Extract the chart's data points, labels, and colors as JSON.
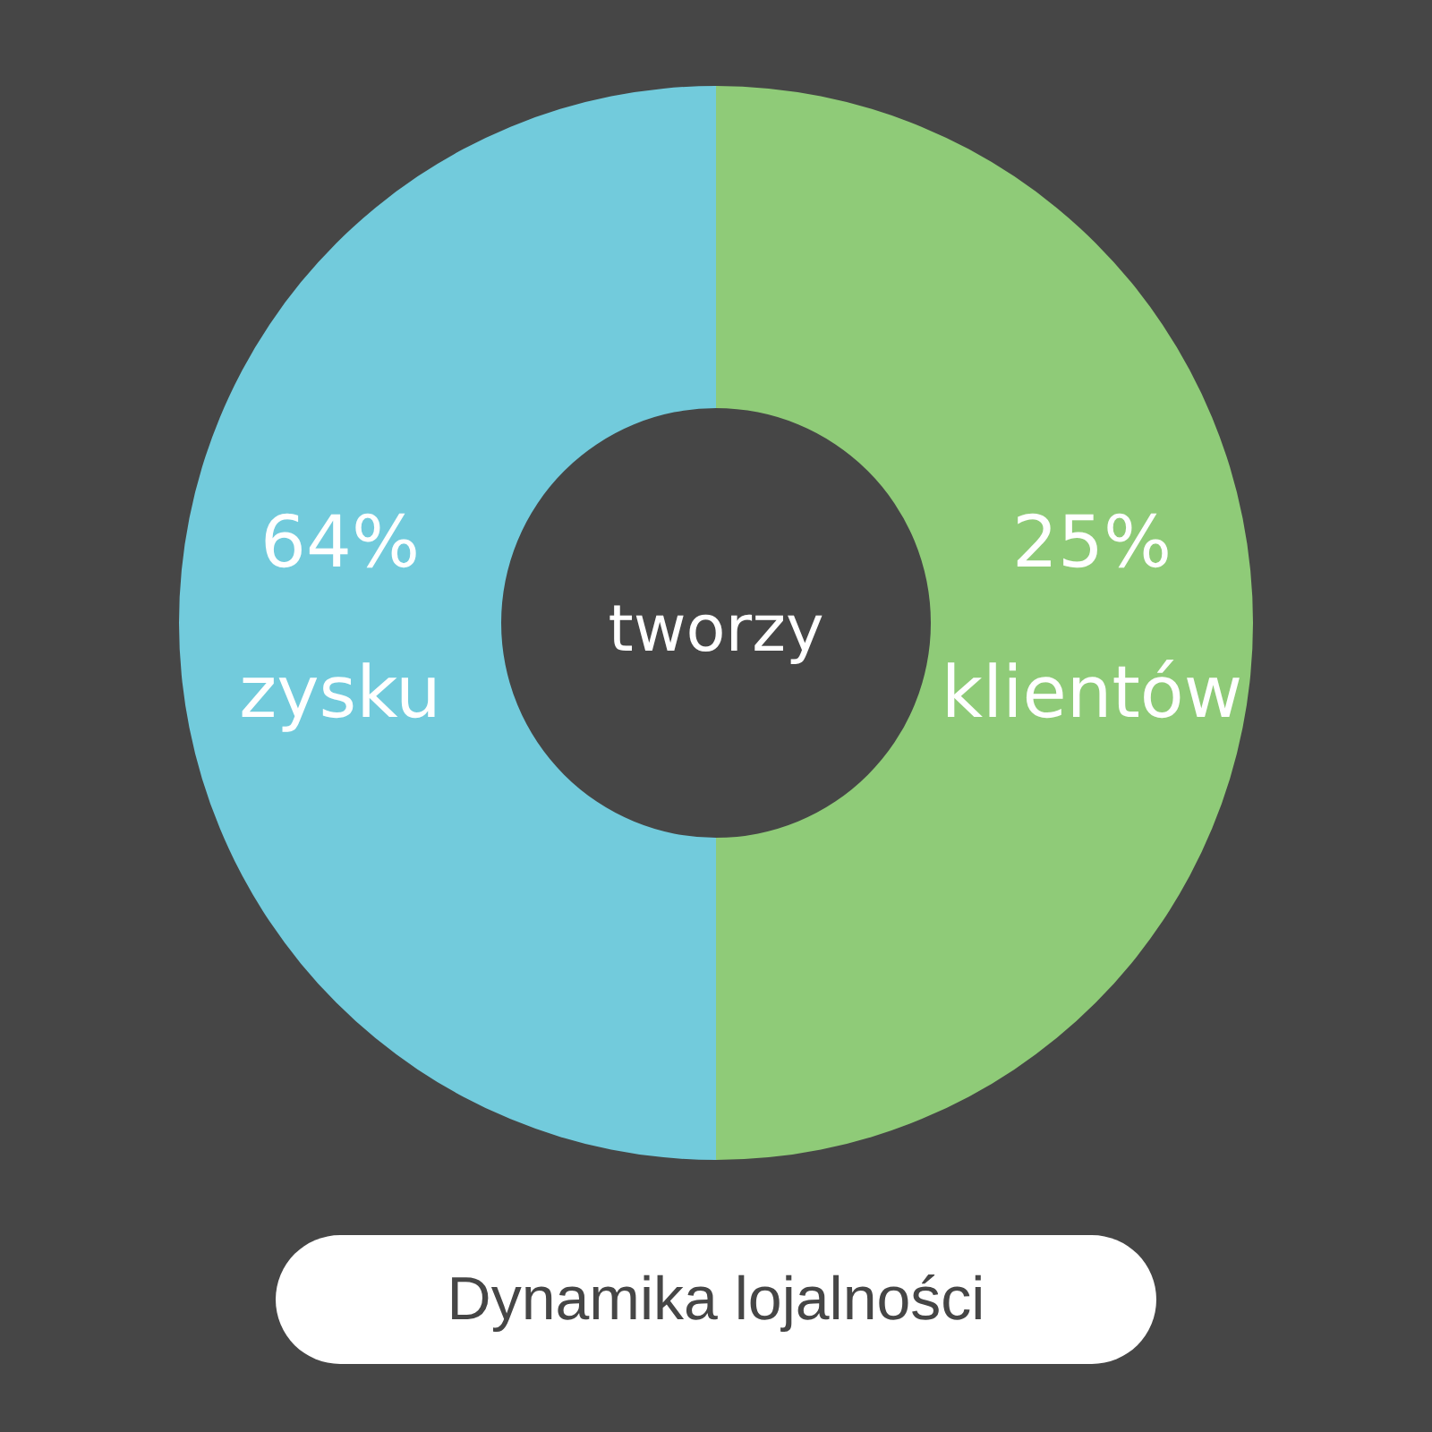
{
  "chart_data": {
    "type": "donut",
    "title": "Dynamika lojalności",
    "categories": [
      "64% zysku",
      "25% klientów"
    ],
    "values": [
      50,
      50
    ],
    "colors": [
      "#72cbdc",
      "#8fcb78"
    ],
    "annotations": [
      "tworzy"
    ],
    "legend": false
  }
}
